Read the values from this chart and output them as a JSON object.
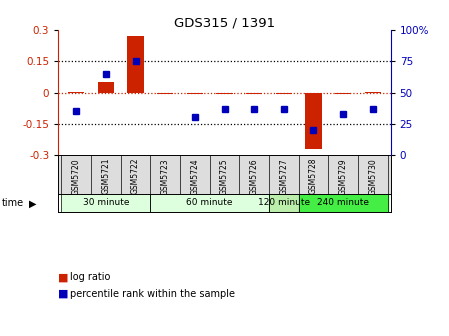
{
  "title": "GDS315 / 1391",
  "samples": [
    "GSM5720",
    "GSM5721",
    "GSM5722",
    "GSM5723",
    "GSM5724",
    "GSM5725",
    "GSM5726",
    "GSM5727",
    "GSM5728",
    "GSM5729",
    "GSM5730"
  ],
  "log_ratio": [
    0.005,
    0.05,
    0.27,
    -0.005,
    -0.005,
    -0.005,
    -0.005,
    -0.005,
    -0.27,
    -0.005,
    0.005
  ],
  "percentile_rank": [
    35,
    65,
    75,
    null,
    30,
    37,
    37,
    37,
    20,
    33,
    37
  ],
  "time_groups": [
    {
      "label": "30 minute",
      "start": 0,
      "end": 2,
      "color": "#ddffdd"
    },
    {
      "label": "60 minute",
      "start": 3,
      "end": 6,
      "color": "#ddffdd"
    },
    {
      "label": "120 minute",
      "start": 7,
      "end": 7,
      "color": "#bbeeaa"
    },
    {
      "label": "240 minute",
      "start": 8,
      "end": 10,
      "color": "#44ee44"
    }
  ],
  "bar_color": "#cc2200",
  "dot_color": "#0000bb",
  "ylim_left": [
    -0.3,
    0.3
  ],
  "ylim_right": [
    0,
    100
  ],
  "yticks_left": [
    -0.3,
    -0.15,
    0,
    0.15,
    0.3
  ],
  "yticks_right": [
    0,
    25,
    50,
    75,
    100
  ],
  "background_color": "#ffffff",
  "plot_bg": "#ffffff",
  "sample_label_bg": "#dddddd"
}
